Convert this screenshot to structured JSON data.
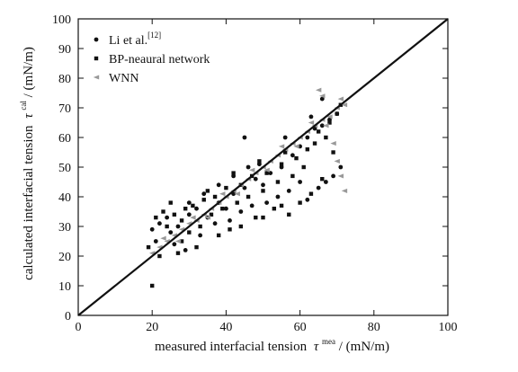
{
  "chart_data": {
    "type": "scatter",
    "xlabel": "measured interfacial tension",
    "xlabel_symbol": "τ",
    "xlabel_sup": "mea",
    "xlabel_unit": "/ (mN/m)",
    "ylabel": "calculated interfacial tension",
    "ylabel_symbol": "τ",
    "ylabel_sup": "cal",
    "ylabel_unit": "/ (mN/m)",
    "xlim": [
      0,
      100
    ],
    "ylim": [
      0,
      100
    ],
    "x_ticks": [
      "0",
      "20",
      "40",
      "60",
      "80",
      "100"
    ],
    "y_ticks": [
      "0",
      "10",
      "20",
      "30",
      "40",
      "50",
      "60",
      "70",
      "80",
      "90",
      "100"
    ],
    "grid": false,
    "legend_position": "top-left",
    "reference_line": {
      "from": [
        0,
        0
      ],
      "to": [
        100,
        100
      ]
    },
    "series": [
      {
        "name": "Li et al.",
        "name_sup": "[12]",
        "marker": "circle",
        "color": "#111111",
        "points": [
          [
            20,
            29
          ],
          [
            22,
            31
          ],
          [
            24,
            33
          ],
          [
            25,
            28
          ],
          [
            27,
            30
          ],
          [
            30,
            34
          ],
          [
            32,
            36
          ],
          [
            35,
            33
          ],
          [
            38,
            38
          ],
          [
            40,
            36
          ],
          [
            42,
            41
          ],
          [
            45,
            43
          ],
          [
            48,
            46
          ],
          [
            50,
            44
          ],
          [
            52,
            48
          ],
          [
            55,
            50
          ],
          [
            58,
            54
          ],
          [
            60,
            57
          ],
          [
            62,
            60
          ],
          [
            64,
            63
          ],
          [
            66,
            64
          ],
          [
            68,
            66
          ],
          [
            70,
            68
          ],
          [
            21,
            25
          ],
          [
            26,
            24
          ],
          [
            29,
            22
          ],
          [
            33,
            27
          ],
          [
            37,
            31
          ],
          [
            41,
            32
          ],
          [
            44,
            35
          ],
          [
            47,
            37
          ],
          [
            51,
            38
          ],
          [
            54,
            40
          ],
          [
            57,
            42
          ],
          [
            60,
            45
          ],
          [
            62,
            39
          ],
          [
            65,
            43
          ],
          [
            67,
            45
          ],
          [
            69,
            47
          ],
          [
            71,
            50
          ],
          [
            30,
            38
          ],
          [
            34,
            41
          ],
          [
            38,
            44
          ],
          [
            42,
            47
          ],
          [
            46,
            50
          ],
          [
            49,
            51
          ],
          [
            56,
            60
          ],
          [
            63,
            67
          ],
          [
            66,
            73
          ],
          [
            45,
            60
          ]
        ]
      },
      {
        "name": "BP-neaural network",
        "marker": "square",
        "color": "#111111",
        "points": [
          [
            19,
            23
          ],
          [
            20,
            10
          ],
          [
            21,
            33
          ],
          [
            23,
            35
          ],
          [
            24,
            30
          ],
          [
            26,
            34
          ],
          [
            28,
            32
          ],
          [
            28,
            25
          ],
          [
            30,
            28
          ],
          [
            31,
            37
          ],
          [
            33,
            30
          ],
          [
            34,
            39
          ],
          [
            36,
            34
          ],
          [
            37,
            40
          ],
          [
            39,
            36
          ],
          [
            40,
            43
          ],
          [
            41,
            29
          ],
          [
            43,
            38
          ],
          [
            44,
            44
          ],
          [
            46,
            40
          ],
          [
            47,
            47
          ],
          [
            48,
            33
          ],
          [
            50,
            42
          ],
          [
            51,
            48
          ],
          [
            53,
            36
          ],
          [
            54,
            45
          ],
          [
            55,
            51
          ],
          [
            57,
            34
          ],
          [
            58,
            47
          ],
          [
            59,
            53
          ],
          [
            60,
            38
          ],
          [
            61,
            50
          ],
          [
            62,
            56
          ],
          [
            63,
            41
          ],
          [
            64,
            58
          ],
          [
            65,
            62
          ],
          [
            66,
            46
          ],
          [
            67,
            60
          ],
          [
            68,
            65
          ],
          [
            69,
            55
          ],
          [
            70,
            68
          ],
          [
            71,
            71
          ],
          [
            25,
            38
          ],
          [
            29,
            36
          ],
          [
            35,
            42
          ],
          [
            42,
            48
          ],
          [
            49,
            52
          ],
          [
            56,
            55
          ],
          [
            22,
            20
          ],
          [
            27,
            21
          ],
          [
            32,
            23
          ],
          [
            38,
            27
          ],
          [
            44,
            30
          ],
          [
            50,
            33
          ],
          [
            55,
            37
          ]
        ]
      },
      {
        "name": "WNN",
        "marker": "triangle-left",
        "color": "#999999",
        "points": [
          [
            20,
            21
          ],
          [
            22,
            23
          ],
          [
            24,
            25
          ],
          [
            26,
            27
          ],
          [
            28,
            29
          ],
          [
            30,
            31
          ],
          [
            32,
            32
          ],
          [
            34,
            34
          ],
          [
            36,
            36
          ],
          [
            38,
            38
          ],
          [
            40,
            40
          ],
          [
            42,
            42
          ],
          [
            44,
            44
          ],
          [
            46,
            46
          ],
          [
            48,
            48
          ],
          [
            50,
            50
          ],
          [
            52,
            52
          ],
          [
            54,
            54
          ],
          [
            56,
            56
          ],
          [
            58,
            58
          ],
          [
            60,
            60
          ],
          [
            62,
            62
          ],
          [
            64,
            64
          ],
          [
            66,
            66
          ],
          [
            68,
            67
          ],
          [
            70,
            70
          ],
          [
            72,
            71
          ],
          [
            23,
            26
          ],
          [
            27,
            25
          ],
          [
            31,
            33
          ],
          [
            35,
            33
          ],
          [
            39,
            41
          ],
          [
            43,
            41
          ],
          [
            47,
            49
          ],
          [
            51,
            49
          ],
          [
            55,
            57
          ],
          [
            59,
            57
          ],
          [
            63,
            65
          ],
          [
            67,
            64
          ],
          [
            71,
            73
          ],
          [
            69,
            58
          ],
          [
            70,
            52
          ],
          [
            71,
            47
          ],
          [
            72,
            42
          ],
          [
            66,
            74
          ],
          [
            65,
            76
          ]
        ]
      }
    ]
  }
}
